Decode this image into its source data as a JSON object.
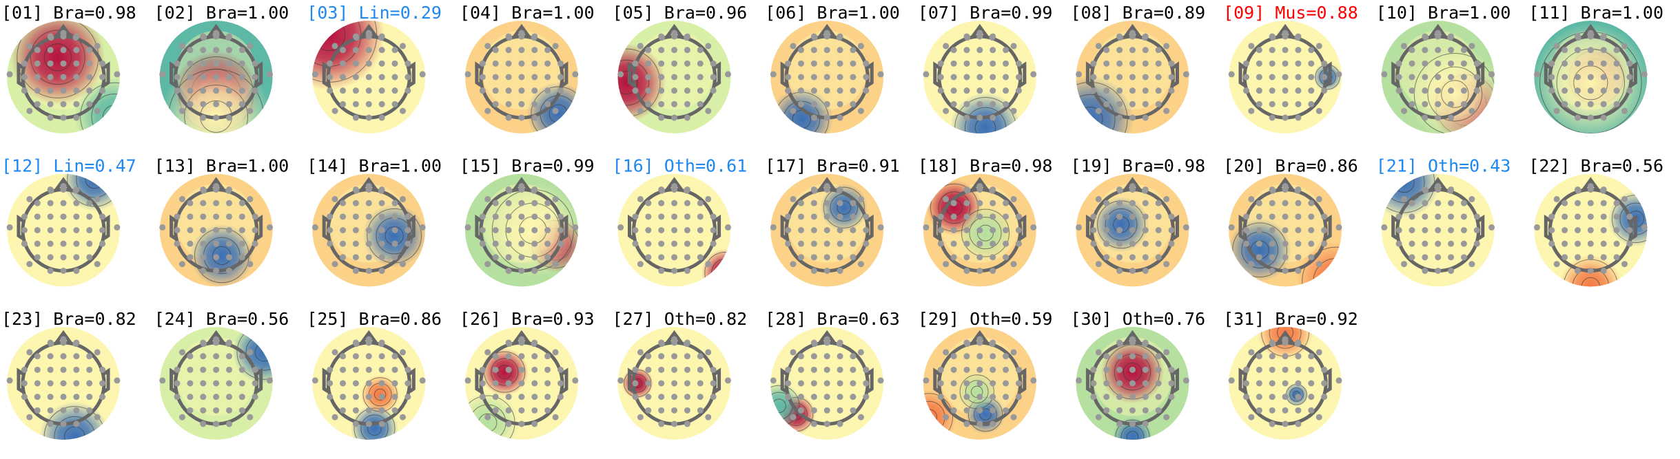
{
  "colors": {
    "Bra": "#000000",
    "Lin": "#1e88f0",
    "Mus": "#ff0000",
    "Oth": "#000000",
    "highlight_blue": "#1e88f0",
    "colormap": "Spectral_r"
  },
  "chart_data": {
    "type": "heatmap",
    "subtype": "topomap-grid",
    "components": [
      {
        "label": "[01] Bra=0.98",
        "color": "#000000"
      },
      {
        "label": "[02] Bra=1.00",
        "color": "#000000"
      },
      {
        "label": "[03] Lin=0.29",
        "color": "#1e88f0"
      },
      {
        "label": "[04] Bra=1.00",
        "color": "#000000"
      },
      {
        "label": "[05] Bra=0.96",
        "color": "#000000"
      },
      {
        "label": "[06] Bra=1.00",
        "color": "#000000"
      },
      {
        "label": "[07] Bra=0.99",
        "color": "#000000"
      },
      {
        "label": "[08] Bra=0.89",
        "color": "#000000"
      },
      {
        "label": "[09] Mus=0.88",
        "color": "#ff0000"
      },
      {
        "label": "[10] Bra=1.00",
        "color": "#000000"
      },
      {
        "label": "[11] Bra=1.00",
        "color": "#000000"
      },
      {
        "label": "[12] Lin=0.47",
        "color": "#1e88f0"
      },
      {
        "label": "[13] Bra=1.00",
        "color": "#000000"
      },
      {
        "label": "[14] Bra=1.00",
        "color": "#000000"
      },
      {
        "label": "[15] Bra=0.99",
        "color": "#000000"
      },
      {
        "label": "[16] Oth=0.61",
        "color": "#1e88f0"
      },
      {
        "label": "[17] Bra=0.91",
        "color": "#000000"
      },
      {
        "label": "[18] Bra=0.98",
        "color": "#000000"
      },
      {
        "label": "[19] Bra=0.98",
        "color": "#000000"
      },
      {
        "label": "[20] Bra=0.86",
        "color": "#000000"
      },
      {
        "label": "[21] Oth=0.43",
        "color": "#1e88f0"
      },
      {
        "label": "[22] Bra=0.56",
        "color": "#000000"
      },
      {
        "label": "[23] Bra=0.82",
        "color": "#000000"
      },
      {
        "label": "[24] Bra=0.56",
        "color": "#000000"
      },
      {
        "label": "[25] Bra=0.86",
        "color": "#000000"
      },
      {
        "label": "[26] Bra=0.93",
        "color": "#000000"
      },
      {
        "label": "[27] Oth=0.82",
        "color": "#000000"
      },
      {
        "label": "[28] Bra=0.63",
        "color": "#000000"
      },
      {
        "label": "[29] Oth=0.59",
        "color": "#000000"
      },
      {
        "label": "[30] Oth=0.76",
        "color": "#000000"
      },
      {
        "label": "[31] Bra=0.92",
        "color": "#000000"
      }
    ]
  }
}
